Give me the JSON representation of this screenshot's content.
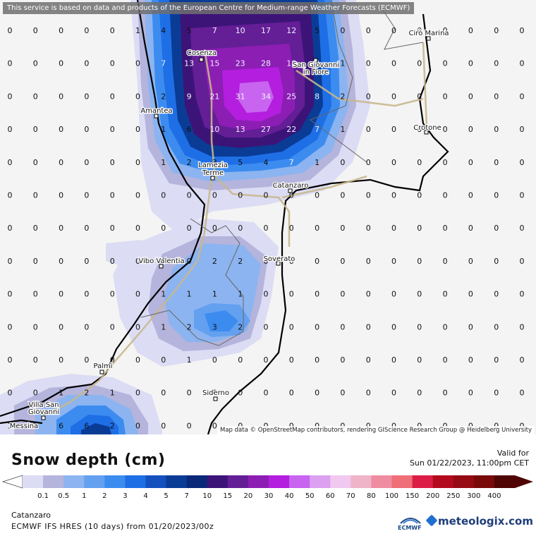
{
  "disclaimer": "This service is based on data and products of the European Centre for Medium-range Weather Forecasts (ECMWF)",
  "attribution": "Map data © OpenStreetMap contributors, rendering GIScience Research Group @ Heidelberg University",
  "title": "Snow depth (cm)",
  "valid_label": "Valid for",
  "valid_time": "Sun 01/22/2023, 11:00pm CET",
  "location": "Catanzaro",
  "model": "ECMWF IFS HRES (10 days) from 01/20/2023/00z",
  "logos": {
    "ecmwf": "ECMWF",
    "meteologix": "meteologix.com"
  },
  "legend": {
    "labels": [
      "0.1",
      "0.5",
      "1",
      "2",
      "3",
      "4",
      "5",
      "7",
      "10",
      "15",
      "20",
      "30",
      "40",
      "50",
      "60",
      "70",
      "80",
      "100",
      "150",
      "200",
      "250",
      "300",
      "400"
    ],
    "colors": [
      "#dcdcf4",
      "#b4b4dc",
      "#8cb4f0",
      "#64a0f0",
      "#3c8cf0",
      "#1e6ee6",
      "#1450be",
      "#0a3c96",
      "#0a2878",
      "#3c1478",
      "#641e96",
      "#8c1eb4",
      "#b41ede",
      "#c864f0",
      "#dca0f0",
      "#f0c8f0",
      "#f0b4c8",
      "#f08ca0",
      "#f06e78",
      "#dc1e46",
      "#b40a1e",
      "#960a14",
      "#780a0a",
      "#500505"
    ]
  },
  "cities": [
    {
      "name": "Cirò Marina"
    },
    {
      "name": "Cosenza"
    },
    {
      "name": "San Giovanni"
    },
    {
      "name": "in Fiore"
    },
    {
      "name": "Amantea"
    },
    {
      "name": "Crotone"
    },
    {
      "name": "Lamezia"
    },
    {
      "name": "Terme"
    },
    {
      "name": "Catanzaro"
    },
    {
      "name": "Vibo Valentia"
    },
    {
      "name": "Soverato"
    },
    {
      "name": "Palmi"
    },
    {
      "name": "Siderno"
    },
    {
      "name": "Villa San"
    },
    {
      "name": "Giovanni"
    },
    {
      "name": "Messina"
    }
  ],
  "grid_cols": 21,
  "grid_values": [
    [
      "0",
      "0",
      "0",
      "0",
      "0",
      "1",
      "4",
      "5",
      "7",
      "10",
      "17",
      "12",
      "5",
      "0",
      "0",
      "0",
      "0",
      "0",
      "0",
      "0",
      "0"
    ],
    [
      "0",
      "0",
      "0",
      "0",
      "0",
      "0",
      "7",
      "13",
      "15",
      "23",
      "28",
      "18",
      "8",
      "1",
      "0",
      "0",
      "0",
      "0",
      "0",
      "0",
      "0"
    ],
    [
      "0",
      "0",
      "0",
      "0",
      "0",
      "0",
      "2",
      "9",
      "21",
      "31",
      "34",
      "25",
      "8",
      "2",
      "0",
      "0",
      "0",
      "0",
      "0",
      "0",
      "0"
    ],
    [
      "0",
      "0",
      "0",
      "0",
      "0",
      "0",
      "1",
      "6",
      "10",
      "13",
      "27",
      "22",
      "7",
      "1",
      "0",
      "0",
      "0",
      "0",
      "0",
      "0",
      "0"
    ],
    [
      "0",
      "0",
      "0",
      "0",
      "0",
      "0",
      "1",
      "2",
      "3",
      "5",
      "4",
      "7",
      "1",
      "0",
      "0",
      "0",
      "0",
      "0",
      "0",
      "0",
      "0"
    ],
    [
      "0",
      "0",
      "0",
      "0",
      "0",
      "0",
      "0",
      "0",
      "0",
      "0",
      "0",
      "0",
      "0",
      "0",
      "0",
      "0",
      "0",
      "0",
      "0",
      "0",
      "0"
    ],
    [
      "0",
      "0",
      "0",
      "0",
      "0",
      "0",
      "0",
      "0",
      "0",
      "0",
      "0",
      "0",
      "0",
      "0",
      "0",
      "0",
      "0",
      "0",
      "0",
      "0",
      "0"
    ],
    [
      "0",
      "0",
      "0",
      "0",
      "0",
      "0",
      "0",
      "0",
      "2",
      "2",
      "0",
      "0",
      "0",
      "0",
      "0",
      "0",
      "0",
      "0",
      "0",
      "0",
      "0"
    ],
    [
      "0",
      "0",
      "0",
      "0",
      "0",
      "0",
      "1",
      "1",
      "1",
      "1",
      "0",
      "0",
      "0",
      "0",
      "0",
      "0",
      "0",
      "0",
      "0",
      "0",
      "0"
    ],
    [
      "0",
      "0",
      "0",
      "0",
      "0",
      "0",
      "1",
      "2",
      "3",
      "2",
      "0",
      "0",
      "0",
      "0",
      "0",
      "0",
      "0",
      "0",
      "0",
      "0",
      "0"
    ],
    [
      "0",
      "0",
      "0",
      "0",
      "0",
      "0",
      "0",
      "1",
      "0",
      "0",
      "0",
      "0",
      "0",
      "0",
      "0",
      "0",
      "0",
      "0",
      "0",
      "0",
      "0"
    ],
    [
      "0",
      "0",
      "1",
      "2",
      "1",
      "0",
      "0",
      "0",
      "0",
      "0",
      "0",
      "0",
      "0",
      "0",
      "0",
      "0",
      "0",
      "0",
      "0",
      "0",
      "0"
    ],
    [
      "1",
      "2",
      "6",
      "6",
      "2",
      "0",
      "0",
      "0",
      "0",
      "0",
      "0",
      "0",
      "0",
      "0",
      "0",
      "0",
      "0",
      "0",
      "0",
      "0",
      "0"
    ]
  ]
}
